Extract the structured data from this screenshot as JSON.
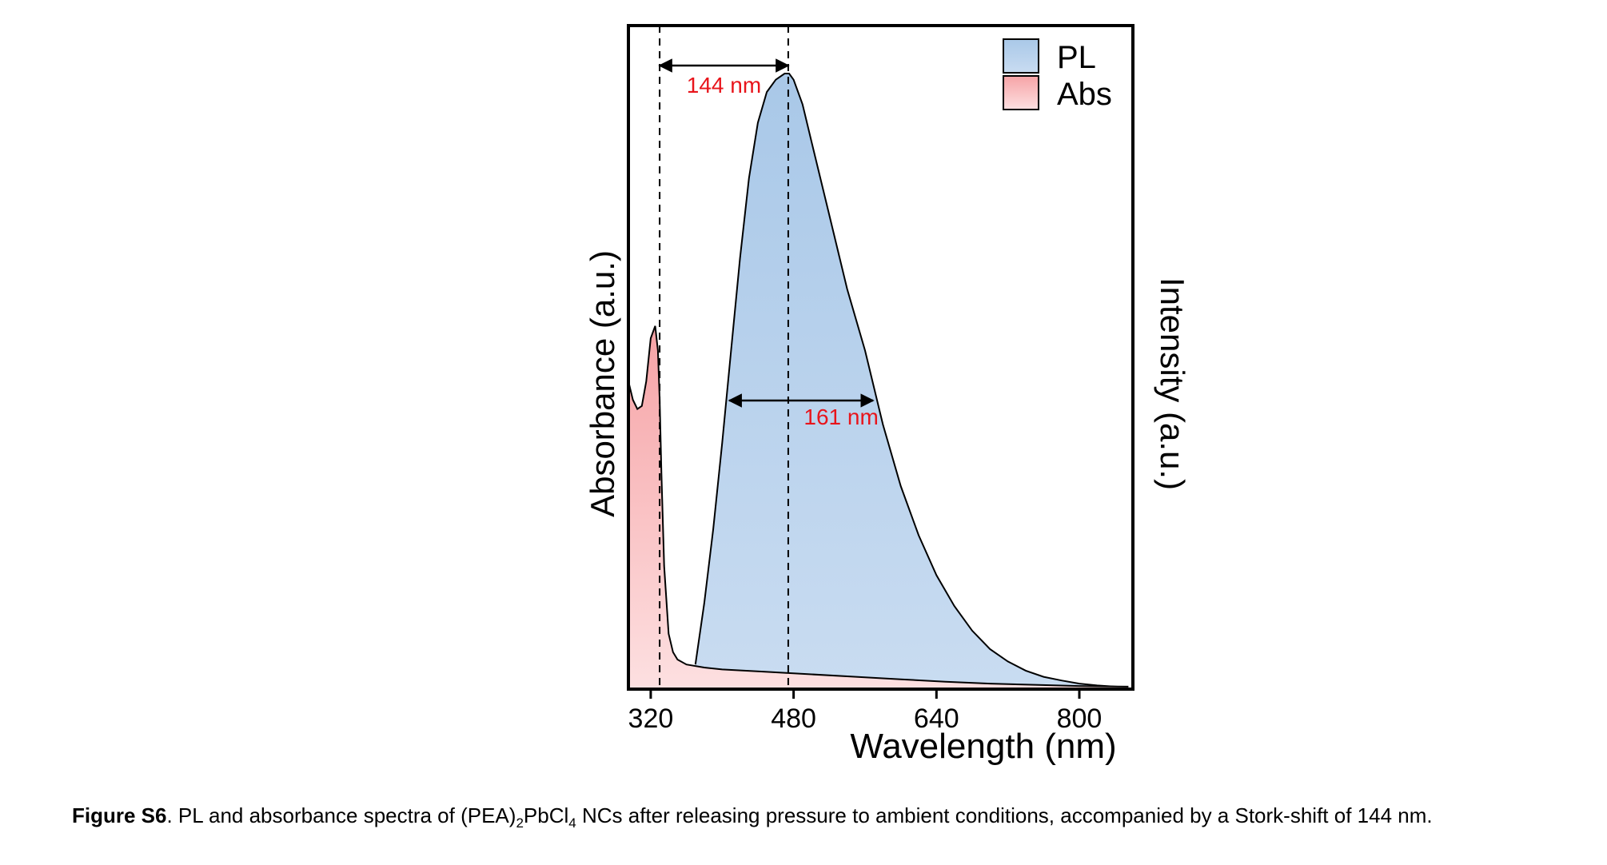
{
  "chart_data": {
    "type": "area",
    "xlabel": "Wavelength (nm)",
    "ylabel_left": "Absorbance (a.u.)",
    "ylabel_right": "Intensity (a.u.)",
    "xlim": [
      295,
      860
    ],
    "ylim": [
      0,
      1
    ],
    "x_ticks": [
      "320",
      "480",
      "640",
      "800"
    ],
    "x_tick_values": [
      320,
      480,
      640,
      800
    ],
    "grid": false,
    "legend_position": "top-right",
    "colors": {
      "pl_fill_top": "#a9c8e8",
      "pl_fill_bottom": "#c9dcf1",
      "abs_fill_top": "#f6a3a6",
      "abs_fill_bottom": "#fde0e1",
      "annotation": "#e8141b",
      "outline": "#000000"
    },
    "series": [
      {
        "name": "PL",
        "x": [
          370,
          380,
          390,
          400,
          410,
          420,
          430,
          440,
          450,
          460,
          470,
          475,
          480,
          490,
          500,
          520,
          540,
          560,
          580,
          600,
          620,
          640,
          660,
          680,
          700,
          720,
          740,
          760,
          780,
          800,
          820,
          840,
          855
        ],
        "y": [
          0.04,
          0.14,
          0.26,
          0.4,
          0.55,
          0.7,
          0.83,
          0.92,
          0.97,
          0.99,
          1.0,
          1.0,
          0.99,
          0.95,
          0.89,
          0.77,
          0.65,
          0.55,
          0.43,
          0.33,
          0.25,
          0.185,
          0.135,
          0.095,
          0.065,
          0.045,
          0.03,
          0.02,
          0.014,
          0.009,
          0.006,
          0.004,
          0.003
        ]
      },
      {
        "name": "Abs",
        "x": [
          295,
          300,
          305,
          310,
          315,
          320,
          325,
          328,
          330,
          332,
          335,
          340,
          345,
          350,
          360,
          380,
          400,
          450,
          500,
          550,
          600,
          650,
          700,
          750,
          800,
          855
        ],
        "y": [
          0.5,
          0.47,
          0.455,
          0.46,
          0.5,
          0.57,
          0.59,
          0.55,
          0.47,
          0.35,
          0.2,
          0.09,
          0.06,
          0.048,
          0.04,
          0.035,
          0.032,
          0.028,
          0.024,
          0.02,
          0.016,
          0.012,
          0.009,
          0.007,
          0.005,
          0.004
        ]
      }
    ],
    "annotations": [
      {
        "text": "144 nm",
        "x_from": 330,
        "x_to": 474
      },
      {
        "text": "161 nm",
        "x_from": 408,
        "x_to": 569
      }
    ],
    "reference_lines_x": [
      330,
      474
    ]
  },
  "caption": {
    "label": "Figure S6",
    "text_before_sub1": ". PL and absorbance spectra of (PEA)",
    "sub1": "2",
    "text_between": "PbCl",
    "sub2": "4",
    "text_after": " NCs after releasing pressure to ambient conditions, accompanied by a Stork-shift of 144 nm."
  }
}
